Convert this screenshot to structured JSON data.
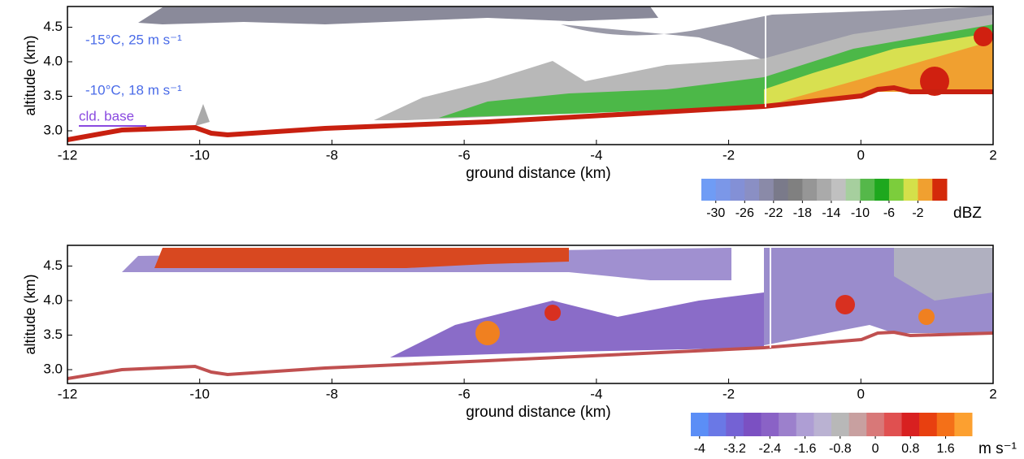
{
  "chart_data": [
    {
      "type": "heatmap",
      "ylabel": "altitude (km)",
      "xlabel": "ground distance (km)",
      "xlim": [
        -12,
        2
      ],
      "xticks": [
        -12,
        -10,
        -8,
        -6,
        -4,
        -2,
        0,
        2
      ],
      "ylim": [
        2.8,
        4.8
      ],
      "yticks": [
        {
          "value": 3,
          "label": "3.0"
        },
        {
          "value": 3.5,
          "label": "3.5"
        },
        {
          "value": 4,
          "label": "4.0"
        },
        {
          "value": 4.5,
          "label": "4.5"
        }
      ],
      "annotations": [
        "-15°C, 25 m s⁻¹",
        "-10°C, 18 m s⁻¹",
        "cld. base"
      ],
      "colorbar": {
        "label": "dBZ",
        "lim": [
          -32,
          2
        ],
        "ticks": [
          -30,
          -26,
          -22,
          -18,
          -14,
          -10,
          -6,
          -2
        ],
        "colors": [
          "#6f9cf5",
          "#7b97e8",
          "#8390d6",
          "#8a8fc4",
          "#8a8aa8",
          "#7a7a8a",
          "#808080",
          "#969696",
          "#aaaaaa",
          "#c0c0c0",
          "#a6cf9e",
          "#55b84a",
          "#1ea81e",
          "#7ccd3c",
          "#d4e04a",
          "#f0a030",
          "#d42a0a"
        ]
      }
    },
    {
      "type": "heatmap",
      "ylabel": "altitude (km)",
      "xlabel": "ground distance (km)",
      "xlim": [
        -12,
        2
      ],
      "xticks": [
        -12,
        -10,
        -8,
        -6,
        -4,
        -2,
        0,
        2
      ],
      "ylim": [
        2.8,
        4.8
      ],
      "yticks": [
        {
          "value": 3,
          "label": "3.0"
        },
        {
          "value": 3.5,
          "label": "3.5"
        },
        {
          "value": 4,
          "label": "4.0"
        },
        {
          "value": 4.5,
          "label": "4.5"
        }
      ],
      "colorbar": {
        "label": "m s⁻¹",
        "lim": [
          -4.2,
          2.2
        ],
        "ticks": [
          -4,
          -3.2,
          -2.4,
          -1.6,
          -0.8,
          0,
          0.8,
          1.6
        ],
        "colors": [
          "#5b8ef6",
          "#6a78e6",
          "#7462d4",
          "#7b50c2",
          "#8a62c6",
          "#9c80cc",
          "#ae9ed4",
          "#bab2d2",
          "#b8b8b8",
          "#c8a0a0",
          "#d87878",
          "#e05050",
          "#d82020",
          "#e84010",
          "#f47018",
          "#fca030"
        ]
      }
    }
  ]
}
